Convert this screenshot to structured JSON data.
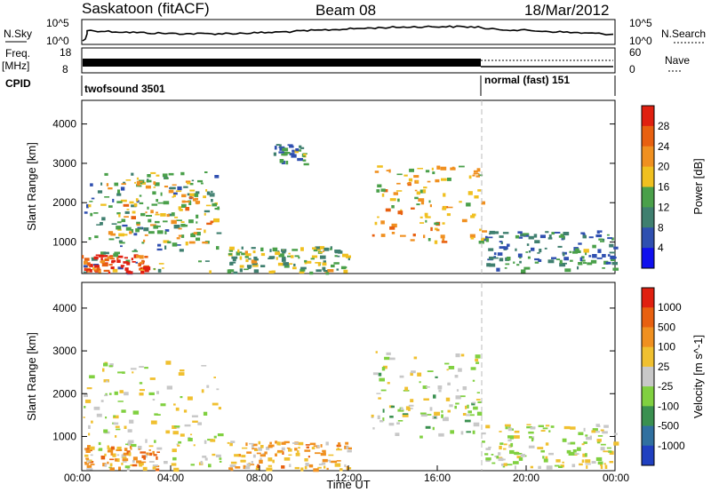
{
  "header": {
    "station": "Saskatoon (fitACF)",
    "beam": "Beam 08",
    "date": "18/Mar/2012"
  },
  "status_panel": {
    "nsky_label": "N.Sky",
    "nsky_ticks": [
      "10^5",
      "10^0"
    ],
    "nsearch_label": "N.Search",
    "nsearch_ticks": [
      "10^5",
      "10^0"
    ],
    "freq_label": "Freq.",
    "freq_unit": "[MHz]",
    "freq_ticks": [
      "18",
      "8"
    ],
    "nave_label": "Nave",
    "nave_ticks": [
      "60",
      "0"
    ],
    "cpid_label": "CPID",
    "cpid_segments": [
      {
        "name": "twofsound",
        "id": "3501",
        "text": "twofsound 3501",
        "start_hour": 0,
        "end_hour": 18
      },
      {
        "name": "normal (fast)",
        "id": "151",
        "text": "normal (fast) 151",
        "start_hour": 18,
        "end_hour": 24
      }
    ]
  },
  "chart_data": [
    {
      "type": "heatmap",
      "quantity": "Power",
      "ylabel": "Slant Range [km]",
      "ylim": [
        200,
        4600
      ],
      "xlim": [
        0,
        24
      ],
      "x_unit": "hours UT",
      "y_ticks": [
        1000,
        2000,
        3000,
        4000
      ],
      "colorbar": {
        "label": "Power [dB]",
        "ticks": [
          "4",
          "8",
          "12",
          "16",
          "20",
          "24",
          "28"
        ],
        "colors": [
          "#1010ee",
          "#2f4fb0",
          "#3f7f6f",
          "#4aa04a",
          "#f0c020",
          "#f09020",
          "#e86010",
          "#e02010"
        ]
      },
      "regions": [
        {
          "t": [
            0.0,
            6.2
          ],
          "r": [
            250,
            2800
          ],
          "level": 0.35
        },
        {
          "t": [
            0.0,
            3.0
          ],
          "r": [
            250,
            700
          ],
          "level": 0.95
        },
        {
          "t": [
            1.0,
            6.0
          ],
          "r": [
            1000,
            2600
          ],
          "level": 0.6
        },
        {
          "t": [
            6.5,
            12.0
          ],
          "r": [
            250,
            900
          ],
          "level": 0.45
        },
        {
          "t": [
            8.5,
            10.0
          ],
          "r": [
            3000,
            3500
          ],
          "level": 0.3
        },
        {
          "t": [
            13.0,
            18.0
          ],
          "r": [
            1000,
            3000
          ],
          "level": 0.6
        },
        {
          "t": [
            18.0,
            24.0
          ],
          "r": [
            300,
            1300
          ],
          "level": 0.3
        }
      ]
    },
    {
      "type": "heatmap",
      "quantity": "Velocity",
      "ylabel": "Slant Range [km]",
      "ylim": [
        200,
        4600
      ],
      "xlim": [
        0,
        24
      ],
      "x_unit": "hours UT",
      "xlabel": "Time UT",
      "x_ticks": [
        "00:00",
        "04:00",
        "08:00",
        "12:00",
        "16:00",
        "20:00",
        "00:00"
      ],
      "y_ticks": [
        1000,
        2000,
        3000,
        4000
      ],
      "colorbar": {
        "label": "Velocity [m s^-1]",
        "ticks": [
          "1000",
          "500",
          "100",
          "25",
          "-25",
          "-100",
          "-500",
          "-1000"
        ],
        "colors": [
          "#2040c0",
          "#3070a0",
          "#3a9050",
          "#80d040",
          "#c8c8c8",
          "#f0c030",
          "#f09020",
          "#e86010",
          "#e02010"
        ]
      },
      "regions": [
        {
          "t": [
            0.0,
            6.2
          ],
          "r": [
            250,
            2800
          ],
          "level": 0.5
        },
        {
          "t": [
            0.0,
            3.5
          ],
          "r": [
            250,
            800
          ],
          "level": 0.7
        },
        {
          "t": [
            6.5,
            12.0
          ],
          "r": [
            250,
            900
          ],
          "level": 0.65
        },
        {
          "t": [
            13.0,
            18.0
          ],
          "r": [
            1000,
            3000
          ],
          "level": 0.45
        },
        {
          "t": [
            18.0,
            24.0
          ],
          "r": [
            300,
            1300
          ],
          "level": 0.5
        }
      ]
    }
  ]
}
